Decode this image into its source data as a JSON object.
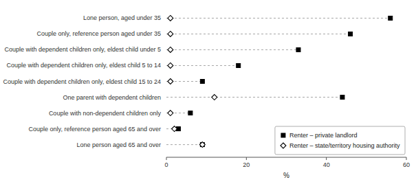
{
  "chart_data": {
    "type": "dot",
    "orientation": "horizontal",
    "categories": [
      "Lone person, aged under 35",
      "Couple only, reference person aged under 35",
      "Couple with dependent children only, eldest child under 5",
      "Couple with dependent children only, eldest child 5 to 14",
      "Couple with dependent children only, eldest child 15 to 24",
      "One parent with dependent children",
      "Couple with non-dependent children only",
      "Couple only, reference person aged 65 and over",
      "Lone person aged 65 and over"
    ],
    "series": [
      {
        "name": "Renter – private landlord",
        "color": "#000000",
        "marker": "square",
        "line_style": "dashed",
        "values": [
          56,
          46,
          33,
          18,
          9,
          44,
          6,
          3,
          9
        ]
      },
      {
        "name": "Renter – state/territory housing authority",
        "color": "#000000",
        "marker": "diamond-open",
        "values": [
          1,
          1,
          1,
          1,
          1,
          12,
          1,
          2,
          9
        ]
      }
    ],
    "xlim": [
      0,
      60
    ],
    "xticks": [
      0,
      20,
      40,
      60
    ],
    "x_label": "%",
    "grid": false,
    "legend": "lower right"
  }
}
